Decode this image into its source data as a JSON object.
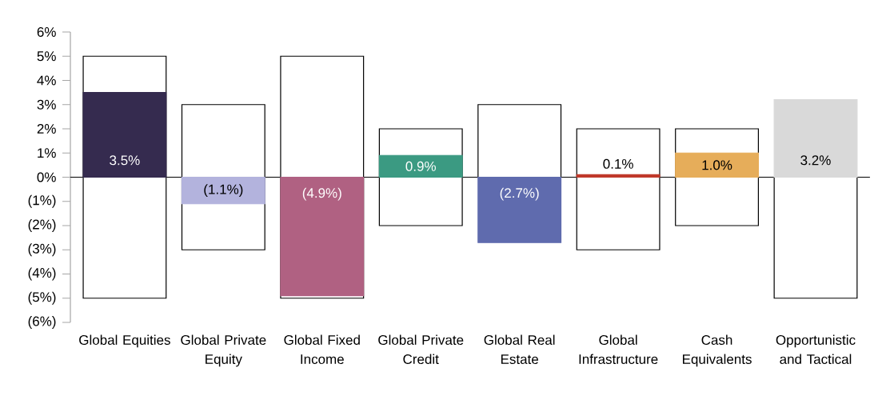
{
  "chart_data": {
    "type": "bar",
    "categories": [
      "Global Equities",
      "Global Private Equity",
      "Global Fixed Income",
      "Global Private Credit",
      "Global Real Estate",
      "Global Infrastructure",
      "Cash Equivalents",
      "Opportunistic and Tactical"
    ],
    "series": [
      {
        "values": [
          10,
          6,
          10,
          4,
          3,
          5,
          4,
          5
        ],
        "base": [
          -5,
          -3,
          -5,
          -2,
          0,
          -3,
          -2,
          -5
        ],
        "color": "#ffffff"
      },
      {
        "values": [
          3.5,
          -1.1,
          -4.9,
          0.9,
          -2.7,
          0.1,
          1.0,
          3.2
        ],
        "colors": [
          "#352b4f",
          "#b3b3dd",
          "#b06182",
          "#3b9a82",
          "#5f6bae",
          "#c0392b",
          "#e6ad5a",
          "#d9d9d9"
        ],
        "value_labels": [
          "3.5%",
          "(1.1%)",
          "(4.9%)",
          "0.9%",
          "(2.7%)",
          "0.1%",
          "1.0%",
          "3.2%"
        ]
      }
    ],
    "ylim": [
      -6,
      6
    ],
    "yticks": [
      {
        "value": 6,
        "label": "6%"
      },
      {
        "value": 5,
        "label": "5%"
      },
      {
        "value": 4,
        "label": "4%"
      },
      {
        "value": 3,
        "label": "3%"
      },
      {
        "value": 2,
        "label": "2%"
      },
      {
        "value": 1,
        "label": "1%"
      },
      {
        "value": 0,
        "label": "0%"
      },
      {
        "value": -1,
        "label": "(1%)"
      },
      {
        "value": -2,
        "label": "(2%)"
      },
      {
        "value": -3,
        "label": "(3%)"
      },
      {
        "value": -4,
        "label": "(4%)"
      },
      {
        "value": -5,
        "label": "(5%)"
      },
      {
        "value": -6,
        "label": "(6%)"
      }
    ],
    "tick_labels": "xy"
  }
}
